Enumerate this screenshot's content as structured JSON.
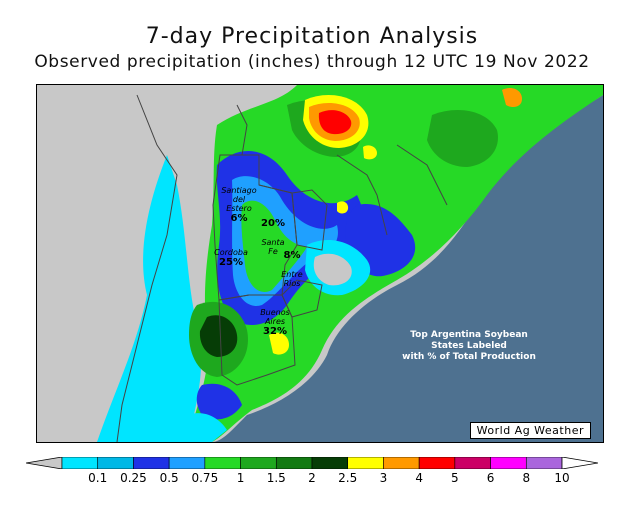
{
  "title": "7-day Precipitation Analysis",
  "subtitle": "Observed precipitation (inches) through 12 UTC 19 Nov 2022",
  "map": {
    "states": [
      {
        "id": "santiago",
        "name": "Santiago\ndel\nEstero",
        "pct": "6%"
      },
      {
        "id": "santafe",
        "name": "Santa\nFe",
        "pct": "20%"
      },
      {
        "id": "cordoba",
        "name": "Cordoba",
        "pct": "25%"
      },
      {
        "id": "entrerios",
        "name": "Entre\nRios",
        "pct": "8%"
      },
      {
        "id": "buenosaires",
        "name": "Buenos\nAires",
        "pct": "32%"
      }
    ],
    "note": "Top Argentina Soybean\nStates Labeled\nwith % of Total Production",
    "credit": "World Ag Weather",
    "colors": {
      "ocean": "#4e7190",
      "land_no_rain": "#c8c8c8",
      "border": "#444444"
    }
  },
  "legend": {
    "ticks": [
      "0.1",
      "0.25",
      "0.5",
      "0.75",
      "1",
      "1.5",
      "2",
      "2.5",
      "3",
      "4",
      "5",
      "6",
      "8",
      "10"
    ],
    "colors": [
      "#00e5ff",
      "#00b8e6",
      "#1f32e6",
      "#1fa0ff",
      "#26d926",
      "#1ea81e",
      "#127a12",
      "#063d06",
      "#ffff00",
      "#ff9900",
      "#ff0000",
      "#cc0066",
      "#ff00ff",
      "#aa66dd"
    ],
    "under_color": "#c8c8c8",
    "over_color": "#ffffff"
  }
}
